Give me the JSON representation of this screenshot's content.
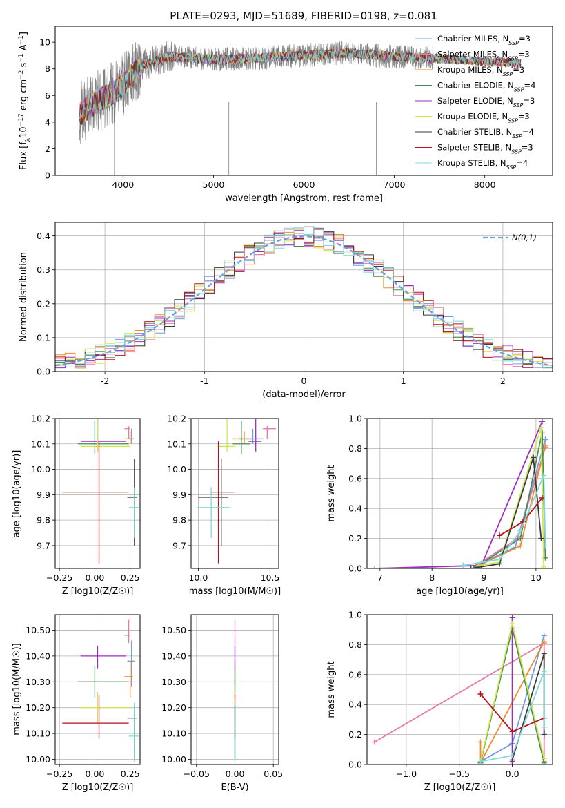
{
  "figure_title": "PLATE=0293, MJD=51689, FIBERID=0198, z=0.081",
  "legend_models": [
    {
      "name": "Chabrier MILES, N_SSP=3",
      "pre": "Chabrier MILES, N",
      "post": "=3",
      "color": "#6f9be3"
    },
    {
      "name": "Salpeter MILES, N_SSP=3",
      "pre": "Salpeter MILES, N",
      "post": "=3",
      "color": "#e779a9"
    },
    {
      "name": "Kroupa MILES, N_SSP=3",
      "pre": "Kroupa MILES, N",
      "post": "=3",
      "color": "#f08a2a"
    },
    {
      "name": "Chabrier ELODIE, N_SSP=4",
      "pre": "Chabrier ELODIE, N",
      "post": "=4",
      "color": "#4c8a5a"
    },
    {
      "name": "Salpeter ELODIE, N_SSP=3",
      "pre": "Salpeter ELODIE, N",
      "post": "=3",
      "color": "#9a2fbf"
    },
    {
      "name": "Kroupa ELODIE, N_SSP=3",
      "pre": "Kroupa ELODIE, N",
      "post": "=3",
      "color": "#cde84e"
    },
    {
      "name": "Chabrier STELIB, N_SSP=4",
      "pre": "Chabrier STELIB, N",
      "post": "=4",
      "color": "#3a3a3a"
    },
    {
      "name": "Salpeter STELIB, N_SSP=3",
      "pre": "Salpeter STELIB, N",
      "post": "=3",
      "color": "#b5121b"
    },
    {
      "name": "Kroupa STELIB, N_SSP=4",
      "pre": "Kroupa STELIB, N",
      "post": "=4",
      "color": "#7fd8dc"
    }
  ],
  "ssp_subscript": "SSP",
  "chart_data": [
    {
      "id": "spectrum",
      "type": "line",
      "title": "PLATE=0293, MJD=51689, FIBERID=0198, z=0.081",
      "xlabel": "wavelength [Angstrom, rest frame]",
      "ylabel_parts": [
        "Flux [f",
        "λ",
        "10",
        "−17",
        " erg cm",
        "−2",
        " s",
        "−1",
        " A",
        "−1",
        "]"
      ],
      "xlim": [
        3250,
        8750
      ],
      "ylim": [
        0,
        11.2
      ],
      "xticks": [
        4000,
        5000,
        6000,
        7000,
        8000
      ],
      "yticks": [
        0,
        2,
        4,
        6,
        8,
        10
      ],
      "grid": false,
      "legend_position": "right",
      "data_color": "#808080",
      "data_range": [
        3520,
        7430
      ],
      "continuum_knots": [
        [
          3520,
          4.6
        ],
        [
          3700,
          5.5
        ],
        [
          3900,
          6.2
        ],
        [
          4000,
          6.8
        ],
        [
          4200,
          8.2
        ],
        [
          4500,
          8.9
        ],
        [
          5000,
          8.7
        ],
        [
          5500,
          8.8
        ],
        [
          6000,
          9.0
        ],
        [
          6500,
          9.2
        ],
        [
          7000,
          8.9
        ],
        [
          7430,
          8.8
        ]
      ],
      "model_range": [
        3520,
        8400
      ]
    },
    {
      "id": "residuals",
      "type": "histogram",
      "xlabel": "(data-model)/error",
      "ylabel": "Normed distribution",
      "xlim": [
        -2.5,
        2.5
      ],
      "ylim": [
        0,
        0.44
      ],
      "xticks": [
        -2,
        -1,
        0,
        1,
        2
      ],
      "yticks": [
        0.0,
        0.1,
        0.2,
        0.3,
        0.4
      ],
      "grid": true,
      "bin_width": 0.1,
      "reference_curve": {
        "name": "N(0,1)",
        "mean": 0,
        "sigma": 1,
        "color": "#6f9be3",
        "dash": "dashed"
      },
      "legend_position": "top-right"
    },
    {
      "id": "z_vs_age",
      "type": "errorbar",
      "xlabel": "Z [log10(Z/Z☉)]",
      "ylabel": "age [log10(age/yr)]",
      "xlim": [
        -0.28,
        0.32
      ],
      "ylim": [
        9.61,
        10.2
      ],
      "xticks": [
        -0.25,
        0.0,
        0.25
      ],
      "yticks": [
        9.7,
        9.8,
        9.9,
        10.0,
        10.1,
        10.2
      ],
      "grid": true,
      "points": [
        {
          "model": 0,
          "x": 0.26,
          "xerr": [
            0.03,
            0.02
          ],
          "y": 10.12,
          "yerr": [
            0.02,
            0.04
          ]
        },
        {
          "model": 1,
          "x": 0.24,
          "xerr": [
            0.03,
            0.01
          ],
          "y": 10.16,
          "yerr": [
            0.04,
            0.01
          ]
        },
        {
          "model": 2,
          "x": 0.25,
          "xerr": [
            0.04,
            0.02
          ],
          "y": 10.12,
          "yerr": [
            0.02,
            0.03
          ]
        },
        {
          "model": 3,
          "x": 0.0,
          "xerr": [
            0.12,
            0.24
          ],
          "y": 10.1,
          "yerr": [
            0.04,
            0.09
          ]
        },
        {
          "model": 4,
          "x": 0.02,
          "xerr": [
            0.12,
            0.2
          ],
          "y": 10.11,
          "yerr": [
            0.04,
            0.09
          ]
        },
        {
          "model": 5,
          "x": 0.02,
          "xerr": [
            0.12,
            0.23
          ],
          "y": 10.09,
          "yerr": [
            0.02,
            0.11
          ]
        },
        {
          "model": 6,
          "x": 0.28,
          "xerr": [
            0.05,
            0.02
          ],
          "y": 9.89,
          "yerr": [
            0.19,
            0.15
          ]
        },
        {
          "model": 7,
          "x": 0.03,
          "xerr": [
            0.26,
            0.21
          ],
          "y": 9.91,
          "yerr": [
            0.28,
            0.2
          ]
        },
        {
          "model": 8,
          "x": 0.28,
          "xerr": [
            0.04,
            0.03
          ],
          "y": 9.85,
          "yerr": [
            0.12,
            0.08
          ]
        }
      ]
    },
    {
      "id": "mass_vs_age",
      "type": "errorbar",
      "xlabel": "mass [log10(M/M☉)]",
      "ylabel": "",
      "xlim": [
        9.95,
        10.56
      ],
      "ylim": [
        9.61,
        10.2
      ],
      "xticks": [
        10.0,
        10.5
      ],
      "yticks": [
        9.7,
        9.8,
        9.9,
        10.0,
        10.1,
        10.2
      ],
      "grid": true,
      "points": [
        {
          "model": 0,
          "x": 10.38,
          "xerr": [
            0.1,
            0.08
          ],
          "y": 10.12,
          "yerr": [
            0.02,
            0.04
          ]
        },
        {
          "model": 1,
          "x": 10.48,
          "xerr": [
            0.03,
            0.06
          ],
          "y": 10.16,
          "yerr": [
            0.04,
            0.01
          ]
        },
        {
          "model": 2,
          "x": 10.32,
          "xerr": [
            0.08,
            0.06
          ],
          "y": 10.12,
          "yerr": [
            0.02,
            0.03
          ]
        },
        {
          "model": 3,
          "x": 10.3,
          "xerr": [
            0.06,
            0.06
          ],
          "y": 10.1,
          "yerr": [
            0.04,
            0.09
          ]
        },
        {
          "model": 4,
          "x": 10.4,
          "xerr": [
            0.05,
            0.04
          ],
          "y": 10.11,
          "yerr": [
            0.04,
            0.09
          ]
        },
        {
          "model": 5,
          "x": 10.2,
          "xerr": [
            0.06,
            0.06
          ],
          "y": 10.09,
          "yerr": [
            0.02,
            0.11
          ]
        },
        {
          "model": 6,
          "x": 10.16,
          "xerr": [
            0.16,
            0.05
          ],
          "y": 9.89,
          "yerr": [
            0.19,
            0.15
          ]
        },
        {
          "model": 7,
          "x": 10.14,
          "xerr": [
            0.06,
            0.11
          ],
          "y": 9.91,
          "yerr": [
            0.28,
            0.2
          ]
        },
        {
          "model": 8,
          "x": 10.09,
          "xerr": [
            0.1,
            0.13
          ],
          "y": 9.85,
          "yerr": [
            0.12,
            0.08
          ]
        }
      ]
    },
    {
      "id": "age_vs_weight",
      "type": "line",
      "xlabel": "age [log10(age/yr)]",
      "ylabel": "mass weight",
      "xlim": [
        6.75,
        10.32
      ],
      "ylim": [
        0,
        1.0
      ],
      "xticks": [
        7,
        8,
        9,
        10
      ],
      "yticks": [
        0.0,
        0.2,
        0.4,
        0.6,
        0.8,
        1.0
      ],
      "grid": true,
      "series": [
        {
          "model": 0,
          "x": [
            8.85,
            9.6,
            10.18
          ],
          "y": [
            0.02,
            0.14,
            0.86
          ]
        },
        {
          "model": 1,
          "x": [
            8.85,
            9.65,
            10.18
          ],
          "y": [
            0.02,
            0.2,
            0.81
          ]
        },
        {
          "model": 2,
          "x": [
            8.85,
            9.7,
            10.18
          ],
          "y": [
            0.01,
            0.15,
            0.82
          ]
        },
        {
          "model": 3,
          "x": [
            8.85,
            9.7,
            10.12,
            10.18
          ],
          "y": [
            0.01,
            0.2,
            0.91,
            0.07
          ]
        },
        {
          "model": 4,
          "x": [
            6.9,
            8.95,
            10.12
          ],
          "y": [
            0.0,
            0.02,
            0.98
          ]
        },
        {
          "model": 5,
          "x": [
            8.9,
            9.3,
            10.1,
            10.15
          ],
          "y": [
            0.02,
            0.04,
            0.94,
            0.01
          ]
        },
        {
          "model": 6,
          "x": [
            8.75,
            9.3,
            9.95,
            10.1
          ],
          "y": [
            0.0,
            0.03,
            0.74,
            0.2
          ]
        },
        {
          "model": 7,
          "x": [
            9.3,
            9.75,
            10.12
          ],
          "y": [
            0.22,
            0.31,
            0.47
          ]
        },
        {
          "model": 8,
          "x": [
            8.6,
            9.3,
            9.7,
            10.15,
            10.18
          ],
          "y": [
            0.02,
            0.06,
            0.25,
            0.62,
            0.15
          ]
        }
      ]
    },
    {
      "id": "z_vs_mass",
      "type": "errorbar",
      "xlabel": "Z [log10(Z/Z☉)]",
      "ylabel": "mass [log10(M/M☉)]",
      "xlim": [
        -0.28,
        0.32
      ],
      "ylim": [
        9.98,
        10.56
      ],
      "xticks": [
        -0.25,
        0.0,
        0.25
      ],
      "yticks": [
        10.0,
        10.1,
        10.2,
        10.3,
        10.4,
        10.5
      ],
      "grid": true,
      "points": [
        {
          "model": 0,
          "x": 0.26,
          "xerr": [
            0.03,
            0.02
          ],
          "y": 10.38,
          "yerr": [
            0.1,
            0.08
          ]
        },
        {
          "model": 1,
          "x": 0.24,
          "xerr": [
            0.03,
            0.01
          ],
          "y": 10.48,
          "yerr": [
            0.03,
            0.06
          ]
        },
        {
          "model": 2,
          "x": 0.25,
          "xerr": [
            0.04,
            0.02
          ],
          "y": 10.32,
          "yerr": [
            0.08,
            0.06
          ]
        },
        {
          "model": 3,
          "x": 0.0,
          "xerr": [
            0.12,
            0.24
          ],
          "y": 10.3,
          "yerr": [
            0.06,
            0.06
          ]
        },
        {
          "model": 4,
          "x": 0.02,
          "xerr": [
            0.12,
            0.2
          ],
          "y": 10.4,
          "yerr": [
            0.05,
            0.04
          ]
        },
        {
          "model": 5,
          "x": 0.02,
          "xerr": [
            0.12,
            0.23
          ],
          "y": 10.2,
          "yerr": [
            0.06,
            0.06
          ]
        },
        {
          "model": 6,
          "x": 0.28,
          "xerr": [
            0.05,
            0.02
          ],
          "y": 10.16,
          "yerr": [
            0.16,
            0.05
          ]
        },
        {
          "model": 7,
          "x": 0.03,
          "xerr": [
            0.26,
            0.21
          ],
          "y": 10.14,
          "yerr": [
            0.06,
            0.11
          ]
        },
        {
          "model": 8,
          "x": 0.28,
          "xerr": [
            0.04,
            0.03
          ],
          "y": 10.09,
          "yerr": [
            0.1,
            0.13
          ]
        }
      ]
    },
    {
      "id": "ebv_vs_mass",
      "type": "errorbar",
      "xlabel": "E(B-V)",
      "ylabel": "",
      "xlim": [
        -0.057,
        0.057
      ],
      "ylim": [
        9.98,
        10.56
      ],
      "xticks": [
        -0.05,
        0.0,
        0.05
      ],
      "yticks": [
        10.0,
        10.1,
        10.2,
        10.3,
        10.4,
        10.5
      ],
      "grid": true,
      "points": [
        {
          "model": 0,
          "x": 0,
          "xerr": [
            0,
            0
          ],
          "y": 10.38,
          "yerr": [
            0.1,
            0.08
          ]
        },
        {
          "model": 1,
          "x": 0,
          "xerr": [
            0,
            0
          ],
          "y": 10.48,
          "yerr": [
            0.03,
            0.06
          ]
        },
        {
          "model": 2,
          "x": 0,
          "xerr": [
            0,
            0
          ],
          "y": 10.32,
          "yerr": [
            0.08,
            0.06
          ]
        },
        {
          "model": 3,
          "x": 0,
          "xerr": [
            0,
            0
          ],
          "y": 10.3,
          "yerr": [
            0.06,
            0.06
          ]
        },
        {
          "model": 4,
          "x": 0,
          "xerr": [
            0,
            0
          ],
          "y": 10.4,
          "yerr": [
            0.05,
            0.04
          ]
        },
        {
          "model": 5,
          "x": 0,
          "xerr": [
            0,
            0
          ],
          "y": 10.2,
          "yerr": [
            0.06,
            0.06
          ]
        },
        {
          "model": 6,
          "x": 0,
          "xerr": [
            0,
            0
          ],
          "y": 10.16,
          "yerr": [
            0.16,
            0.05
          ]
        },
        {
          "model": 7,
          "x": 0,
          "xerr": [
            0,
            0
          ],
          "y": 10.14,
          "yerr": [
            0.06,
            0.11
          ]
        },
        {
          "model": 8,
          "x": 0,
          "xerr": [
            0,
            0
          ],
          "y": 10.09,
          "yerr": [
            0.1,
            0.13
          ]
        }
      ]
    },
    {
      "id": "z_vs_weight",
      "type": "line",
      "xlabel": "Z [log10(Z/Z☉)]",
      "ylabel": "mass weight",
      "xlim": [
        -1.37,
        0.38
      ],
      "ylim": [
        0,
        1.0
      ],
      "xticks": [
        -1.0,
        -0.5,
        0.0
      ],
      "yticks": [
        0.0,
        0.2,
        0.4,
        0.6,
        0.8,
        1.0
      ],
      "grid": true,
      "series": [
        {
          "model": 0,
          "x": [
            -0.3,
            0.0,
            0.3
          ],
          "y": [
            0.02,
            0.14,
            0.86
          ]
        },
        {
          "model": 1,
          "x": [
            -1.3,
            0.3,
            0.3
          ],
          "y": [
            0.15,
            0.81,
            0.02
          ]
        },
        {
          "model": 2,
          "x": [
            -0.3,
            -0.3,
            0.3
          ],
          "y": [
            0.15,
            0.01,
            0.82
          ]
        },
        {
          "model": 3,
          "x": [
            -0.3,
            0.0,
            0.3
          ],
          "y": [
            0.01,
            0.91,
            0.01
          ]
        },
        {
          "model": 4,
          "x": [
            0.0,
            0.0,
            0.0
          ],
          "y": [
            0.0,
            0.98,
            0.02
          ]
        },
        {
          "model": 5,
          "x": [
            -0.3,
            0.0,
            0.3
          ],
          "y": [
            0.02,
            0.94,
            0.04
          ]
        },
        {
          "model": 6,
          "x": [
            0.0,
            0.3,
            0.3
          ],
          "y": [
            0.03,
            0.74,
            0.2
          ]
        },
        {
          "model": 7,
          "x": [
            -0.3,
            0.0,
            0.3
          ],
          "y": [
            0.47,
            0.22,
            0.31
          ]
        },
        {
          "model": 8,
          "x": [
            -0.3,
            0.0,
            0.3,
            0.3
          ],
          "y": [
            0.02,
            0.06,
            0.62,
            0.25
          ]
        }
      ]
    }
  ]
}
